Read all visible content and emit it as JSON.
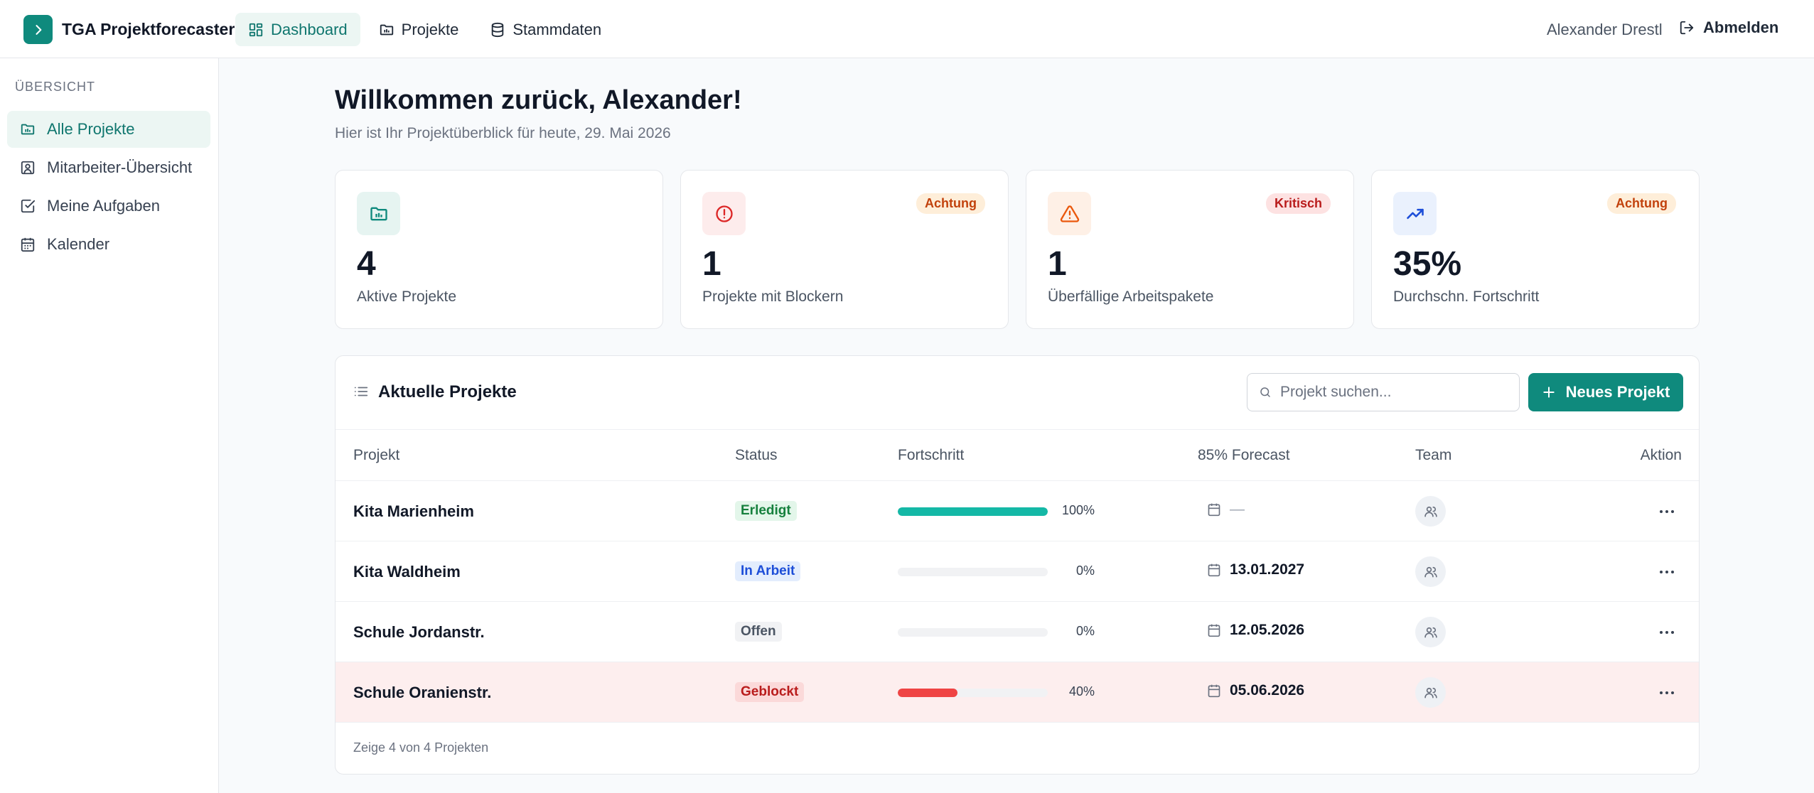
{
  "app": {
    "title": "TGA Projektforecaster"
  },
  "topnav": [
    {
      "label": "Dashboard",
      "icon": "dashboard-icon",
      "active": true
    },
    {
      "label": "Projekte",
      "icon": "folder-icon",
      "active": false
    },
    {
      "label": "Stammdaten",
      "icon": "database-icon",
      "active": false
    }
  ],
  "user": {
    "name": "Alexander Drestl",
    "logout_label": "Abmelden"
  },
  "sidebar": {
    "heading": "ÜBERSICHT",
    "items": [
      {
        "label": "Alle Projekte",
        "icon": "folder-chart-icon",
        "active": true
      },
      {
        "label": "Mitarbeiter-Übersicht",
        "icon": "user-square-icon",
        "active": false
      },
      {
        "label": "Meine Aufgaben",
        "icon": "checkbox-icon",
        "active": false
      },
      {
        "label": "Kalender",
        "icon": "calendar-icon",
        "active": false
      }
    ]
  },
  "header": {
    "welcome": "Willkommen zurück, Alexander!",
    "subtitle": "Hier ist Ihr Projektüberblick für heute, 29. Mai 2026"
  },
  "stats": [
    {
      "value": "4",
      "label": "Aktive Projekte",
      "badge": "",
      "icon": "folder-chart-icon",
      "color": "#0f8a7d"
    },
    {
      "value": "1",
      "label": "Projekte mit Blockern",
      "badge": "Achtung",
      "icon": "alert-circle-icon",
      "color": "#dc2626"
    },
    {
      "value": "1",
      "label": "Überfällige Arbeitspakete",
      "badge": "Kritisch",
      "icon": "warning-triangle-icon",
      "color": "#ea580c"
    },
    {
      "value": "35%",
      "label": "Durchschn. Fortschritt",
      "badge": "Achtung",
      "icon": "trending-up-icon",
      "color": "#1d4ed8"
    }
  ],
  "projects": {
    "title": "Aktuelle Projekte",
    "search_placeholder": "Projekt suchen...",
    "new_button": "Neues Projekt",
    "columns": [
      "Projekt",
      "Status",
      "Fortschritt",
      "85% Forecast",
      "Team",
      "Aktion"
    ],
    "rows": [
      {
        "name": "Kita Marienheim",
        "status": "Erledigt",
        "progress": 100,
        "progress_label": "100%",
        "forecast": "—"
      },
      {
        "name": "Kita Waldheim",
        "status": "In Arbeit",
        "progress": 0,
        "progress_label": "0%",
        "forecast": "13.01.2027"
      },
      {
        "name": "Schule Jordanstr.",
        "status": "Offen",
        "progress": 0,
        "progress_label": "0%",
        "forecast": "12.05.2026"
      },
      {
        "name": "Schule Oranienstr.",
        "status": "Geblockt",
        "progress": 40,
        "progress_label": "40%",
        "forecast": "05.06.2026"
      }
    ],
    "footer": "Zeige 4 von 4 Projekten"
  },
  "colors": {
    "accent": "#0f8a7d",
    "done": "#14b8a6",
    "blocked": "#ef4444",
    "blocked_row": "#fdeeee"
  }
}
